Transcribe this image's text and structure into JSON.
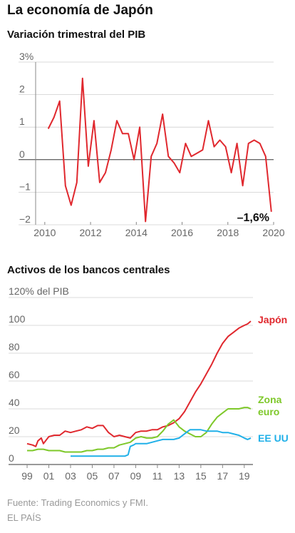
{
  "title": "La economía de Japón",
  "source": "Fuente: Trading Economics y FMI.",
  "brand": "EL PAÍS",
  "colors": {
    "red": "#e0282e",
    "green": "#7ec82a",
    "blue": "#20b0e8",
    "grid": "#cfcfcf",
    "axis": "#888888"
  },
  "chart_data": [
    {
      "type": "line",
      "title": "Variación trimestral del PIB",
      "y_unit_label": "3%",
      "ylim": [
        -2,
        3
      ],
      "yticks": [
        "3%",
        "2",
        "1",
        "0",
        "−1",
        "−2"
      ],
      "yticks_values": [
        3,
        2,
        1,
        0,
        -1,
        -2
      ],
      "xlim": [
        2009.6,
        2020.0
      ],
      "xticks": [
        "2010",
        "2012",
        "2014",
        "2016",
        "2018",
        "2020"
      ],
      "xticks_values": [
        2010,
        2012,
        2014,
        2016,
        2018,
        2020
      ],
      "grid": true,
      "annotation": "–1,6%",
      "series": [
        {
          "color": "#e0282e",
          "x": [
            2010.15,
            2010.4,
            2010.65,
            2010.9,
            2011.15,
            2011.4,
            2011.65,
            2011.9,
            2012.15,
            2012.4,
            2012.65,
            2012.9,
            2013.15,
            2013.4,
            2013.65,
            2013.9,
            2014.15,
            2014.4,
            2014.65,
            2014.9,
            2015.15,
            2015.4,
            2015.65,
            2015.9,
            2016.15,
            2016.4,
            2016.65,
            2016.9,
            2017.15,
            2017.4,
            2017.65,
            2017.9,
            2018.15,
            2018.4,
            2018.65,
            2018.9,
            2019.15,
            2019.4,
            2019.65,
            2019.9
          ],
          "y": [
            0.95,
            1.3,
            1.8,
            -0.8,
            -1.4,
            -0.7,
            2.5,
            -0.2,
            1.2,
            -0.7,
            -0.4,
            0.3,
            1.2,
            0.8,
            0.8,
            0.0,
            1.0,
            -1.9,
            0.1,
            0.5,
            1.4,
            0.1,
            -0.1,
            -0.4,
            0.5,
            0.1,
            0.2,
            0.3,
            1.2,
            0.4,
            0.6,
            0.4,
            -0.4,
            0.5,
            -0.8,
            0.5,
            0.6,
            0.5,
            0.1,
            -1.6
          ]
        }
      ]
    },
    {
      "type": "line",
      "title": "Activos de los bancos centrales",
      "ylim": [
        0,
        120
      ],
      "yticks": [
        "120% del PIB",
        "100",
        "80",
        "60",
        "40",
        "20",
        "0"
      ],
      "yticks_values": [
        120,
        100,
        80,
        60,
        40,
        20,
        0
      ],
      "xlim": [
        1998.8,
        2019.8
      ],
      "xticks": [
        "99",
        "01",
        "03",
        "05",
        "07",
        "09",
        "11",
        "13",
        "15",
        "17",
        "19"
      ],
      "xticks_values": [
        1999,
        2001,
        2003,
        2005,
        2007,
        2009,
        2011,
        2013,
        2015,
        2017,
        2019
      ],
      "grid": true,
      "series": [
        {
          "name": "Japón",
          "color": "#e0282e",
          "x": [
            1999.0,
            1999.5,
            1999.8,
            2000.0,
            2000.3,
            2000.5,
            2001.0,
            2001.5,
            2002.0,
            2002.5,
            2003.0,
            2003.5,
            2004.0,
            2004.5,
            2005.0,
            2005.5,
            2006.0,
            2006.5,
            2007.0,
            2007.5,
            2008.0,
            2008.5,
            2009.0,
            2009.5,
            2010.0,
            2010.5,
            2011.0,
            2011.5,
            2012.0,
            2012.5,
            2013.0,
            2013.5,
            2014.0,
            2014.5,
            2015.0,
            2015.5,
            2016.0,
            2016.5,
            2017.0,
            2017.5,
            2018.0,
            2018.5,
            2019.0,
            2019.3,
            2019.6
          ],
          "y": [
            15,
            14,
            13,
            17,
            19,
            15,
            20,
            21,
            21,
            24,
            23,
            24,
            25,
            27,
            26,
            28,
            28,
            23,
            20,
            21,
            20,
            19,
            23,
            24,
            24,
            25,
            25,
            27,
            28,
            30,
            33,
            38,
            45,
            52,
            58,
            65,
            72,
            80,
            87,
            92,
            95,
            98,
            100,
            101,
            103
          ]
        },
        {
          "name": "Zona euro",
          "color": "#7ec82a",
          "x": [
            1999.0,
            1999.5,
            2000.0,
            2000.5,
            2001.0,
            2001.5,
            2002.0,
            2002.5,
            2003.0,
            2003.5,
            2004.0,
            2004.5,
            2005.0,
            2005.5,
            2006.0,
            2006.5,
            2007.0,
            2007.5,
            2008.0,
            2008.5,
            2009.0,
            2009.5,
            2010.0,
            2010.5,
            2011.0,
            2011.5,
            2012.0,
            2012.5,
            2013.0,
            2013.5,
            2014.0,
            2014.5,
            2015.0,
            2015.5,
            2016.0,
            2016.5,
            2017.0,
            2017.5,
            2018.0,
            2018.5,
            2019.0,
            2019.3,
            2019.6
          ],
          "y": [
            10,
            10,
            11,
            11,
            10,
            10,
            10,
            9,
            9,
            9,
            9,
            10,
            10,
            11,
            11,
            12,
            12,
            14,
            15,
            16,
            19,
            20,
            19,
            19,
            20,
            24,
            29,
            32,
            27,
            24,
            22,
            20,
            20,
            23,
            29,
            34,
            37,
            40,
            40,
            40,
            41,
            41,
            40
          ]
        },
        {
          "name": "EE UU",
          "color": "#20b0e8",
          "x": [
            2003.0,
            2003.5,
            2004.0,
            2004.5,
            2005.0,
            2005.5,
            2006.0,
            2006.5,
            2007.0,
            2007.5,
            2008.0,
            2008.3,
            2008.5,
            2008.8,
            2009.0,
            2009.5,
            2010.0,
            2010.5,
            2011.0,
            2011.5,
            2012.0,
            2012.5,
            2013.0,
            2013.5,
            2014.0,
            2014.5,
            2015.0,
            2015.5,
            2016.0,
            2016.5,
            2017.0,
            2017.5,
            2018.0,
            2018.5,
            2019.0,
            2019.3,
            2019.6
          ],
          "y": [
            6,
            6,
            6,
            6,
            6,
            6,
            6,
            6,
            6,
            6,
            6,
            7,
            13,
            14,
            15,
            15,
            15,
            16,
            17,
            18,
            18,
            18,
            19,
            22,
            25,
            25,
            25,
            24,
            24,
            24,
            23,
            23,
            22,
            21,
            19,
            18,
            19
          ]
        }
      ],
      "legend": [
        "Japón",
        "Zona",
        "euro",
        "EE UU"
      ]
    }
  ]
}
